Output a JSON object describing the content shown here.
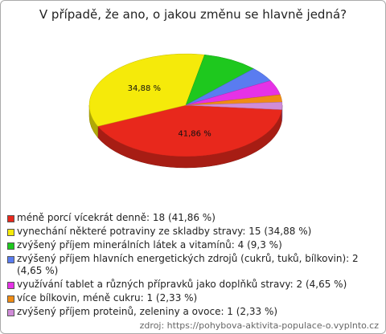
{
  "chart_data": {
    "type": "pie",
    "title": "V případě, že ano, o jakou změnu se hlavně jedná?",
    "categories": [
      "méně porcí vícekrát denně: 18 (41,86 %)",
      "vynechání některé potraviny ze skladby stravy: 15 (34,88 %)",
      "zvýšený příjem minerálních látek a vitamínů: 4 (9,3 %)",
      "zvýšený příjem hlavních energetických zdrojů (cukrů, tuků, bílkovin): 2 (4,65 %)",
      "využívání tablet a různých přípravků jako doplňků stravy: 2 (4,65 %)",
      "více bílkovin, méně cukru: 1 (2,33 %)",
      "zvýšený příjem proteinů, zeleniny a ovoce: 1 (2,33 %)"
    ],
    "values": [
      41.86,
      34.88,
      9.3,
      4.65,
      4.65,
      2.33,
      2.33
    ],
    "value_labels": [
      "41,86 %",
      "34,88 %",
      null,
      null,
      null,
      null,
      null
    ],
    "colors": [
      "#e8281c",
      "#f5ea0a",
      "#1ec81e",
      "#5a7cf0",
      "#e632e6",
      "#f08c14",
      "#d08cd8"
    ],
    "source": "zdroj: https://pohybova-aktivita-populace-o.vyplnto.cz"
  }
}
